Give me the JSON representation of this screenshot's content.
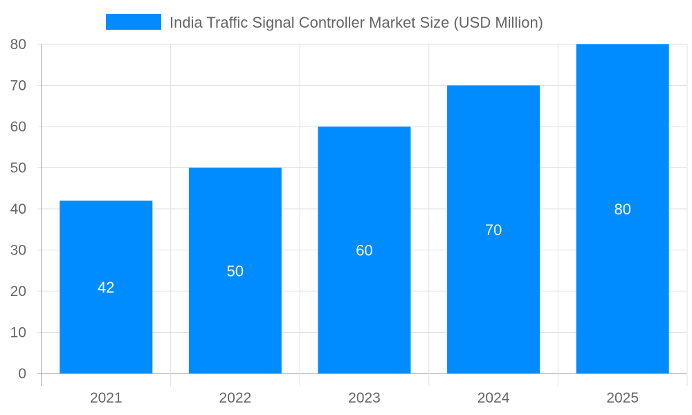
{
  "chart_data": {
    "type": "bar",
    "title": "",
    "categories": [
      "2021",
      "2022",
      "2023",
      "2024",
      "2025"
    ],
    "series": [
      {
        "name": "India Traffic Signal Controller Market Size (USD Million)",
        "values": [
          42,
          50,
          60,
          70,
          80
        ],
        "color": "#008cff"
      }
    ],
    "data_labels": [
      "42",
      "50",
      "60",
      "70",
      "80"
    ],
    "xlabel": "",
    "ylabel": "",
    "ylim": [
      0,
      80
    ],
    "yticks": [
      "0",
      "10",
      "20",
      "30",
      "40",
      "50",
      "60",
      "70",
      "80"
    ],
    "grid": true,
    "legend_position": "top"
  }
}
